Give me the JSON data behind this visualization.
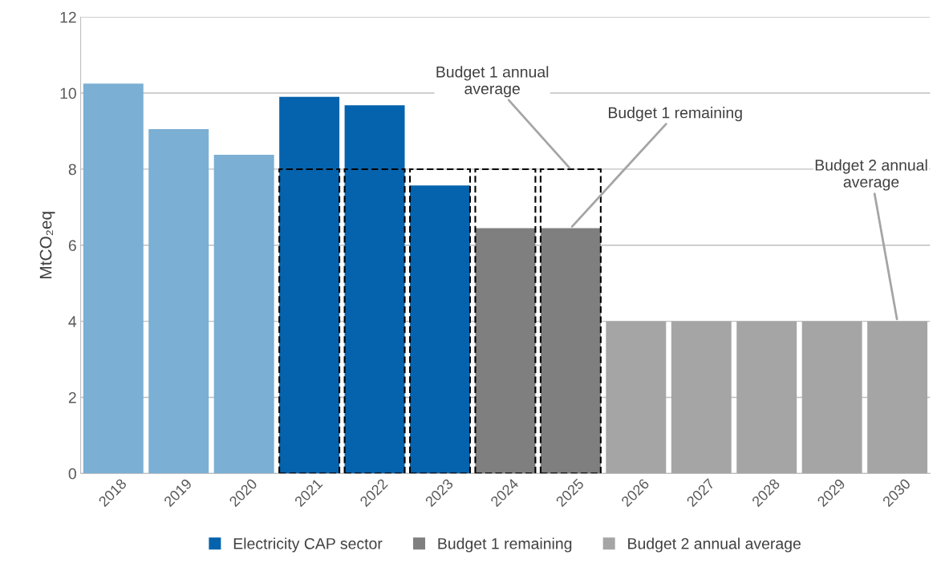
{
  "chart_data": {
    "type": "bar",
    "ylabel": "MtCO₂eq",
    "categories": [
      "2018",
      "2019",
      "2020",
      "2021",
      "2022",
      "2023",
      "2024",
      "2025",
      "2026",
      "2027",
      "2028",
      "2029",
      "2030"
    ],
    "series": [
      {
        "color": "#7bafd4",
        "values": [
          10.25,
          9.05,
          8.38,
          null,
          null,
          null,
          null,
          null,
          null,
          null,
          null,
          null,
          null
        ]
      },
      {
        "name": "Electricity CAP sector",
        "color": "#0563ad",
        "values": [
          null,
          null,
          null,
          9.9,
          9.68,
          7.57,
          null,
          null,
          null,
          null,
          null,
          null,
          null
        ]
      },
      {
        "name": "Budget 1 remaining",
        "color": "#7f7f7f",
        "values": [
          null,
          null,
          null,
          null,
          null,
          null,
          6.45,
          6.45,
          null,
          null,
          null,
          null,
          null
        ]
      },
      {
        "name": "Budget 2 annual average",
        "color": "#a5a5a5",
        "values": [
          null,
          null,
          null,
          null,
          null,
          null,
          null,
          null,
          4,
          4,
          4,
          4,
          4
        ]
      },
      {
        "color": "#000000",
        "line_style": "dashed",
        "values": [
          null,
          null,
          null,
          8,
          8,
          8,
          8,
          8,
          null,
          null,
          null,
          null,
          null
        ]
      }
    ],
    "ylim": [
      0,
      12
    ],
    "yticks": [
      0,
      2,
      4,
      6,
      8,
      10,
      12
    ],
    "grid": "y",
    "legend": "bottom",
    "annotations": [
      {
        "text": "Budget 1 annual\naverage",
        "x": "2025",
        "y": 8
      },
      {
        "text": "Budget 1 remaining",
        "x": "2025",
        "y": 6.45
      },
      {
        "text": "Budget 2 annual\naverage",
        "x": "2030",
        "y": 4
      }
    ]
  }
}
